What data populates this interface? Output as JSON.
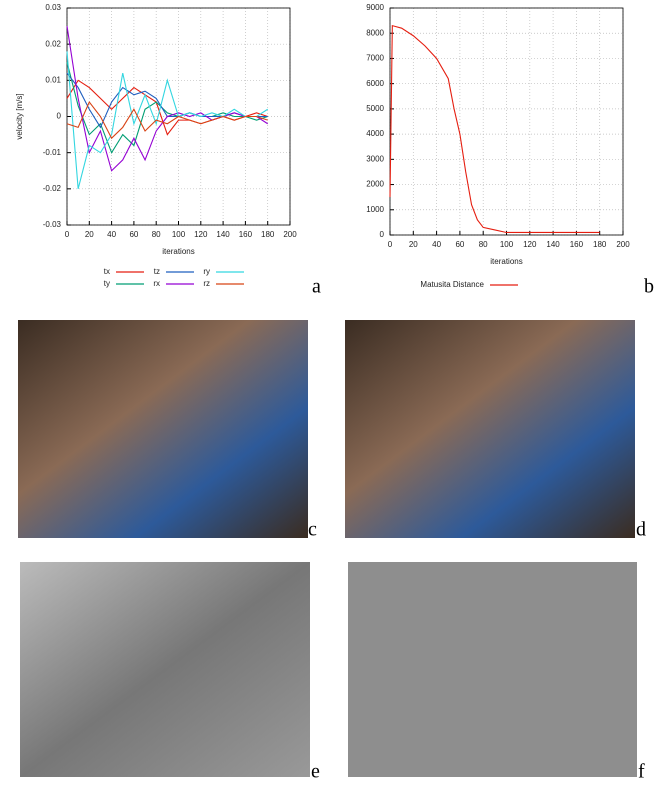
{
  "chart_data": [
    {
      "type": "line",
      "ylabel": "velocity [m/s]",
      "xlabel": "iterations",
      "panel_label": "a",
      "x": [
        0,
        10,
        20,
        30,
        40,
        50,
        60,
        70,
        80,
        90,
        100,
        110,
        120,
        130,
        140,
        150,
        160,
        170,
        180
      ],
      "xlim": [
        0,
        200
      ],
      "xticks": [
        0,
        20,
        40,
        60,
        80,
        100,
        120,
        140,
        160,
        180,
        200
      ],
      "ylim": [
        -0.03,
        0.03
      ],
      "yticks": [
        -0.03,
        -0.02,
        -0.01,
        0,
        0.01,
        0.02,
        0.03
      ],
      "grid": true,
      "legend": "bottom",
      "series": [
        {
          "name": "tx",
          "color": "#e51e10",
          "values": [
            0.005,
            0.01,
            0.008,
            0.005,
            0.002,
            0.005,
            0.008,
            0.006,
            0.004,
            -0.005,
            -0.001,
            -0.001,
            -0.002,
            -0.001,
            0,
            -0.001,
            0,
            0.001,
            0
          ]
        },
        {
          "name": "ty",
          "color": "#009e73",
          "values": [
            0.015,
            0.003,
            -0.005,
            -0.002,
            -0.01,
            -0.005,
            -0.008,
            0.002,
            0.004,
            0.001,
            0,
            0.001,
            0,
            0,
            0.001,
            0,
            0,
            -0.001,
            0
          ]
        },
        {
          "name": "tz",
          "color": "#1f5fbf",
          "values": [
            0.012,
            0.008,
            0.002,
            -0.003,
            0.004,
            0.008,
            0.006,
            0.007,
            0.005,
            0,
            0,
            0.001,
            0,
            0,
            0,
            0.001,
            0,
            0,
            0
          ]
        },
        {
          "name": "rx",
          "color": "#9400d3",
          "values": [
            0.025,
            0.005,
            -0.01,
            -0.004,
            -0.015,
            -0.012,
            -0.006,
            -0.012,
            -0.004,
            0,
            0.001,
            0,
            0.001,
            -0.001,
            0,
            0.001,
            0,
            0,
            -0.002
          ]
        },
        {
          "name": "ry",
          "color": "#33d6e0",
          "values": [
            0.018,
            -0.02,
            -0.008,
            -0.01,
            -0.005,
            0.012,
            -0.002,
            0.006,
            -0.002,
            0.01,
            0,
            0.001,
            0,
            0.001,
            0,
            0.002,
            0,
            0,
            0.002
          ]
        },
        {
          "name": "rz",
          "color": "#d84315",
          "values": [
            -0.002,
            -0.003,
            0.004,
            0,
            -0.006,
            -0.003,
            0.002,
            -0.004,
            -0.001,
            -0.002,
            0,
            -0.001,
            -0.002,
            -0.001,
            0,
            -0.001,
            0,
            0,
            -0.001
          ]
        }
      ]
    },
    {
      "type": "line",
      "xlabel": "iterations",
      "panel_label": "b",
      "x": [
        0,
        2,
        10,
        20,
        30,
        40,
        50,
        55,
        60,
        65,
        70,
        75,
        80,
        90,
        100,
        120,
        140,
        160,
        180
      ],
      "xlim": [
        0,
        200
      ],
      "xticks": [
        0,
        20,
        40,
        60,
        80,
        100,
        120,
        140,
        160,
        180,
        200
      ],
      "ylim": [
        0,
        9000
      ],
      "yticks": [
        0,
        1000,
        2000,
        3000,
        4000,
        5000,
        6000,
        7000,
        8000,
        9000
      ],
      "grid": true,
      "legend": "bottom",
      "series": [
        {
          "name": "Matusita Distance",
          "color": "#e51e10",
          "values": [
            1500,
            8300,
            8200,
            7900,
            7500,
            7000,
            6200,
            5000,
            4000,
            2500,
            1200,
            600,
            300,
            200,
            100,
            100,
            100,
            100,
            100
          ]
        }
      ]
    }
  ],
  "images": [
    {
      "label": "c"
    },
    {
      "label": "d"
    },
    {
      "label": "e"
    },
    {
      "label": "f"
    }
  ]
}
